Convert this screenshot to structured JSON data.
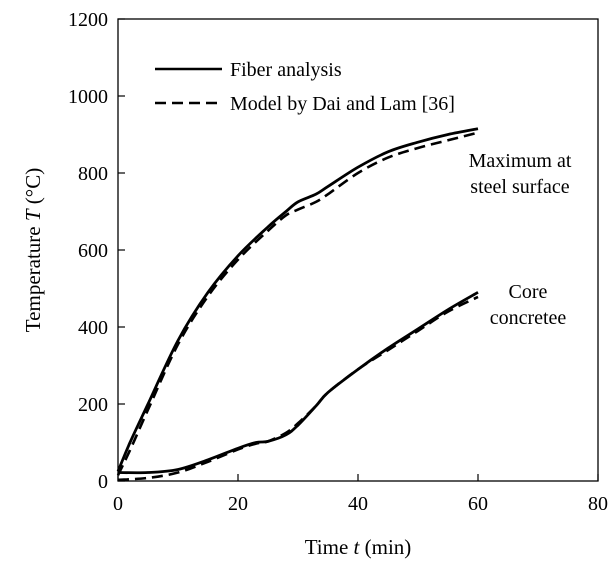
{
  "chart_data": {
    "type": "line",
    "xlabel": {
      "prefix": "Time ",
      "var": "t",
      "suffix": " (min)"
    },
    "ylabel": {
      "prefix": "Temperature ",
      "var": "T",
      "suffix": " (°C)"
    },
    "xlim": [
      0,
      80
    ],
    "ylim": [
      0,
      1200
    ],
    "xticks": [
      0,
      20,
      40,
      60,
      80
    ],
    "yticks": [
      0,
      200,
      400,
      600,
      800,
      1000,
      1200
    ],
    "grid": false,
    "legend_position": "top-left",
    "legend": [
      {
        "label": "Fiber analysis",
        "style": "solid"
      },
      {
        "label": "Model by Dai and Lam [36]",
        "style": "dashed"
      }
    ],
    "annotations": [
      {
        "lines": [
          "Maximum at",
          "steel surface"
        ]
      },
      {
        "lines": [
          "Core",
          "concretee"
        ]
      }
    ],
    "series": [
      {
        "name": "Fiber analysis",
        "group": "Maximum at steel surface",
        "style": "solid",
        "x": [
          0,
          2,
          5,
          10,
          15,
          20,
          25,
          28,
          30,
          33,
          35,
          40,
          45,
          50,
          55,
          60
        ],
        "y": [
          25,
          100,
          200,
          365,
          490,
          585,
          660,
          700,
          725,
          745,
          765,
          815,
          855,
          880,
          900,
          915
        ]
      },
      {
        "name": "Model by Dai and Lam [36]",
        "group": "Maximum at steel surface",
        "style": "dashed",
        "x": [
          0,
          2,
          5,
          10,
          15,
          20,
          25,
          28,
          30,
          33,
          35,
          40,
          45,
          50,
          55,
          60
        ],
        "y": [
          15,
          80,
          185,
          355,
          480,
          575,
          650,
          690,
          705,
          725,
          745,
          800,
          840,
          865,
          885,
          905
        ]
      },
      {
        "name": "Fiber analysis",
        "group": "Core concretee",
        "style": "solid",
        "x": [
          0,
          5,
          10,
          15,
          20,
          23,
          25,
          28,
          30,
          33,
          35,
          40,
          45,
          50,
          55,
          60
        ],
        "y": [
          22,
          22,
          30,
          55,
          85,
          100,
          103,
          120,
          145,
          195,
          230,
          290,
          345,
          395,
          445,
          490
        ]
      },
      {
        "name": "Model by Dai and Lam [36]",
        "group": "Core concretee",
        "style": "dashed",
        "x": [
          0,
          5,
          10,
          15,
          20,
          23,
          25,
          28,
          30,
          33,
          35,
          40,
          45,
          50,
          55,
          60
        ],
        "y": [
          3,
          8,
          22,
          50,
          82,
          97,
          103,
          125,
          150,
          195,
          230,
          290,
          340,
          390,
          440,
          478
        ]
      }
    ]
  }
}
